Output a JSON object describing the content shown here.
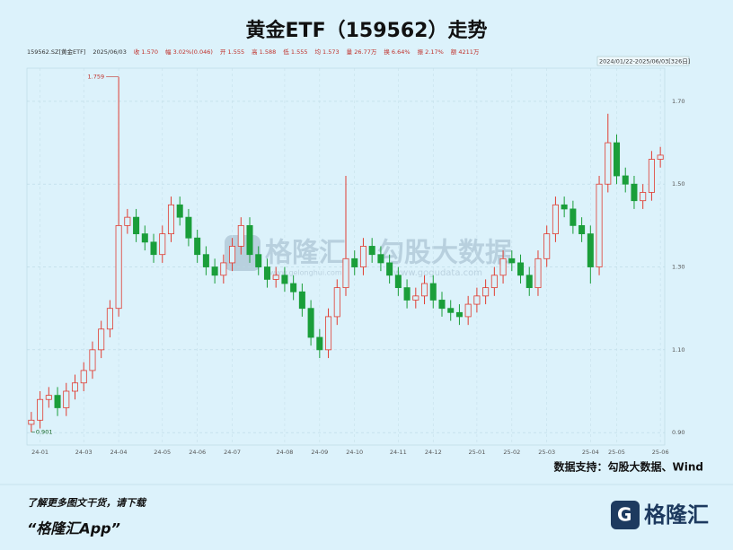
{
  "chart_data": {
    "type": "candlestick",
    "title": "黄金ETF（159562）走势",
    "info": [
      "159562.SZ[黄金ETF]",
      "2025/06/03",
      "收 1.570",
      "幅 3.02%(0.046)",
      "开 1.555",
      "高 1.588",
      "低 1.555",
      "均 1.573",
      "量 26.77万",
      "换 6.64%",
      "振 2.17%",
      "额 4211万"
    ],
    "range_label": "2024/01/22-2025/06/03[326日]",
    "source": "数据支持：勾股大数据、Wind",
    "up_color": "#e03c31",
    "down_color": "#1a9e3a",
    "categories": [
      null,
      "24-01",
      null,
      null,
      null,
      null,
      "24-03",
      null,
      null,
      null,
      "24-04",
      null,
      null,
      null,
      null,
      "24-05",
      null,
      null,
      null,
      "24-06",
      null,
      null,
      null,
      "24-07",
      null,
      null,
      null,
      null,
      null,
      "24-08",
      null,
      null,
      null,
      "24-09",
      null,
      null,
      null,
      "24-10",
      null,
      null,
      null,
      null,
      "24-11",
      null,
      null,
      null,
      "24-12",
      null,
      null,
      null,
      null,
      "25-01",
      null,
      null,
      null,
      "25-02",
      null,
      null,
      null,
      "25-03",
      null,
      null,
      null,
      null,
      "25-04",
      null,
      null,
      "25-05",
      null,
      null,
      null,
      null,
      "25-06"
    ],
    "open": [
      0.92,
      0.93,
      0.98,
      0.99,
      0.96,
      1.0,
      1.02,
      1.05,
      1.1,
      1.15,
      1.2,
      1.4,
      1.42,
      1.38,
      1.36,
      1.33,
      1.38,
      1.45,
      1.42,
      1.37,
      1.33,
      1.3,
      1.28,
      1.31,
      1.35,
      1.4,
      1.33,
      1.3,
      1.27,
      1.28,
      1.26,
      1.24,
      1.2,
      1.13,
      1.1,
      1.18,
      1.25,
      1.32,
      1.3,
      1.35,
      1.33,
      1.31,
      1.28,
      1.25,
      1.22,
      1.23,
      1.26,
      1.22,
      1.2,
      1.19,
      1.18,
      1.21,
      1.23,
      1.25,
      1.28,
      1.32,
      1.31,
      1.28,
      1.25,
      1.32,
      1.38,
      1.45,
      1.44,
      1.4,
      1.38,
      1.3,
      1.5,
      1.6,
      1.52,
      1.5,
      1.46,
      1.48,
      1.56
    ],
    "high": [
      0.95,
      1.0,
      1.01,
      1.01,
      1.02,
      1.04,
      1.07,
      1.12,
      1.17,
      1.22,
      1.759,
      1.44,
      1.44,
      1.4,
      1.38,
      1.4,
      1.47,
      1.47,
      1.44,
      1.39,
      1.35,
      1.32,
      1.33,
      1.37,
      1.42,
      1.42,
      1.35,
      1.32,
      1.3,
      1.3,
      1.28,
      1.26,
      1.22,
      1.15,
      1.2,
      1.27,
      1.52,
      1.34,
      1.37,
      1.37,
      1.35,
      1.33,
      1.3,
      1.27,
      1.25,
      1.28,
      1.28,
      1.24,
      1.22,
      1.21,
      1.23,
      1.25,
      1.27,
      1.3,
      1.34,
      1.34,
      1.33,
      1.3,
      1.34,
      1.4,
      1.47,
      1.47,
      1.46,
      1.42,
      1.4,
      1.52,
      1.67,
      1.62,
      1.54,
      1.52,
      1.5,
      1.58,
      1.59
    ],
    "low": [
      0.901,
      0.91,
      0.96,
      0.94,
      0.94,
      0.98,
      1.0,
      1.03,
      1.08,
      1.13,
      1.18,
      1.38,
      1.36,
      1.34,
      1.31,
      1.31,
      1.36,
      1.4,
      1.35,
      1.31,
      1.28,
      1.26,
      1.26,
      1.29,
      1.33,
      1.31,
      1.28,
      1.25,
      1.25,
      1.24,
      1.22,
      1.18,
      1.11,
      1.08,
      1.08,
      1.16,
      1.23,
      1.28,
      1.28,
      1.31,
      1.29,
      1.26,
      1.23,
      1.2,
      1.2,
      1.21,
      1.2,
      1.18,
      1.17,
      1.16,
      1.16,
      1.19,
      1.21,
      1.23,
      1.26,
      1.29,
      1.26,
      1.23,
      1.23,
      1.3,
      1.36,
      1.42,
      1.38,
      1.36,
      1.26,
      1.28,
      1.48,
      1.5,
      1.48,
      1.44,
      1.44,
      1.46,
      1.54
    ],
    "close": [
      0.93,
      0.98,
      0.99,
      0.96,
      1.0,
      1.02,
      1.05,
      1.1,
      1.15,
      1.2,
      1.4,
      1.42,
      1.38,
      1.36,
      1.33,
      1.38,
      1.45,
      1.42,
      1.37,
      1.33,
      1.3,
      1.28,
      1.31,
      1.35,
      1.4,
      1.33,
      1.3,
      1.27,
      1.28,
      1.26,
      1.24,
      1.2,
      1.13,
      1.1,
      1.18,
      1.25,
      1.32,
      1.3,
      1.35,
      1.33,
      1.31,
      1.28,
      1.25,
      1.22,
      1.23,
      1.26,
      1.22,
      1.2,
      1.19,
      1.18,
      1.21,
      1.23,
      1.25,
      1.28,
      1.32,
      1.31,
      1.28,
      1.25,
      1.32,
      1.38,
      1.45,
      1.44,
      1.4,
      1.38,
      1.3,
      1.5,
      1.6,
      1.52,
      1.5,
      1.46,
      1.48,
      1.56,
      1.57
    ],
    "annotations": [
      1.759,
      0.901
    ],
    "ylim": [
      0.87,
      1.78
    ],
    "yticks": [
      {
        "value": 0.9,
        "label": "0.90"
      },
      {
        "value": 1.1,
        "label": "1.10"
      },
      {
        "value": 1.3,
        "label": "1.30"
      },
      {
        "value": 1.5,
        "label": "1.50"
      },
      {
        "value": 1.7,
        "label": "1.70"
      }
    ],
    "grid": true
  },
  "watermark": {
    "brand1": "格隆汇",
    "url1": "www.gelonghui.com",
    "brand2": "勾股大数据",
    "url2": "www.gogudata.com"
  },
  "footer": {
    "line1": "了解更多图文干货，请下载",
    "line2": "“格隆汇App”",
    "logo": "格隆汇"
  }
}
